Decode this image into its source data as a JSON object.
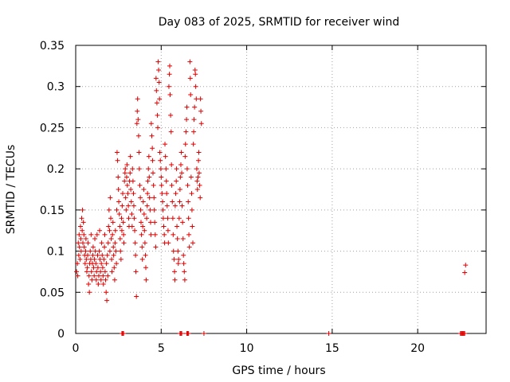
{
  "chart_data": {
    "type": "scatter",
    "title": "Day 083 of 2025, SRMTID for receiver wind",
    "xlabel": "GPS time / hours",
    "ylabel": "SRMTID / TECUs",
    "xlim": [
      0,
      24
    ],
    "ylim": [
      0,
      0.35
    ],
    "x_ticks": [
      0,
      5,
      10,
      15,
      20
    ],
    "y_ticks": [
      0,
      0.05,
      0.1,
      0.15,
      0.2,
      0.25,
      0.3,
      0.35
    ],
    "x_tick_labels": [
      "0",
      "5",
      "10",
      "15",
      "20"
    ],
    "y_tick_labels": [
      "0",
      "0.05",
      "0.1",
      "0.15",
      "0.2",
      "0.25",
      "0.3",
      "0.35"
    ],
    "grid": true,
    "legend": "none",
    "marker": "+",
    "color": "#dd0000",
    "points": [
      [
        0.05,
        0.075
      ],
      [
        0.1,
        0.085
      ],
      [
        0.12,
        0.07
      ],
      [
        0.15,
        0.11
      ],
      [
        0.18,
        0.095
      ],
      [
        0.2,
        0.12
      ],
      [
        0.22,
        0.105
      ],
      [
        0.25,
        0.09
      ],
      [
        0.28,
        0.13
      ],
      [
        0.3,
        0.115
      ],
      [
        0.32,
        0.1
      ],
      [
        0.35,
        0.14
      ],
      [
        0.38,
        0.125
      ],
      [
        0.4,
        0.15
      ],
      [
        0.42,
        0.11
      ],
      [
        0.45,
        0.135
      ],
      [
        0.48,
        0.12
      ],
      [
        0.5,
        0.105
      ],
      [
        0.52,
        0.095
      ],
      [
        0.55,
        0.085
      ],
      [
        0.58,
        0.1
      ],
      [
        0.6,
        0.115
      ],
      [
        0.62,
        0.09
      ],
      [
        0.65,
        0.075
      ],
      [
        0.68,
        0.08
      ],
      [
        0.7,
        0.095
      ],
      [
        0.72,
        0.11
      ],
      [
        0.75,
        0.06
      ],
      [
        0.78,
        0.07
      ],
      [
        0.8,
        0.05
      ],
      [
        0.82,
        0.085
      ],
      [
        0.85,
        0.1
      ],
      [
        0.88,
        0.09
      ],
      [
        0.9,
        0.12
      ],
      [
        0.92,
        0.075
      ],
      [
        0.95,
        0.065
      ],
      [
        0.98,
        0.085
      ],
      [
        1.0,
        0.095
      ],
      [
        1.02,
        0.105
      ],
      [
        1.05,
        0.08
      ],
      [
        1.08,
        0.07
      ],
      [
        1.1,
        0.09
      ],
      [
        1.12,
        0.115
      ],
      [
        1.15,
        0.1
      ],
      [
        1.18,
        0.085
      ],
      [
        1.2,
        0.065
      ],
      [
        1.22,
        0.075
      ],
      [
        1.25,
        0.12
      ],
      [
        1.28,
        0.095
      ],
      [
        1.3,
        0.08
      ],
      [
        1.32,
        0.06
      ],
      [
        1.35,
        0.07
      ],
      [
        1.38,
        0.1
      ],
      [
        1.4,
        0.125
      ],
      [
        1.42,
        0.09
      ],
      [
        1.45,
        0.075
      ],
      [
        1.48,
        0.065
      ],
      [
        1.5,
        0.085
      ],
      [
        1.52,
        0.11
      ],
      [
        1.55,
        0.095
      ],
      [
        1.58,
        0.08
      ],
      [
        1.6,
        0.07
      ],
      [
        1.62,
        0.06
      ],
      [
        1.65,
        0.09
      ],
      [
        1.68,
        0.105
      ],
      [
        1.7,
        0.12
      ],
      [
        1.72,
        0.075
      ],
      [
        1.75,
        0.065
      ],
      [
        1.78,
        0.05
      ],
      [
        1.8,
        0.085
      ],
      [
        1.82,
        0.04
      ],
      [
        1.85,
        0.095
      ],
      [
        1.88,
        0.07
      ],
      [
        1.9,
        0.11
      ],
      [
        1.92,
        0.13
      ],
      [
        1.95,
        0.15
      ],
      [
        1.98,
        0.125
      ],
      [
        2.0,
        0.1
      ],
      [
        2.02,
        0.165
      ],
      [
        2.05,
        0.14
      ],
      [
        2.08,
        0.115
      ],
      [
        2.1,
        0.09
      ],
      [
        2.12,
        0.075
      ],
      [
        2.15,
        0.12
      ],
      [
        2.18,
        0.135
      ],
      [
        2.2,
        0.105
      ],
      [
        2.22,
        0.095
      ],
      [
        2.25,
        0.08
      ],
      [
        2.28,
        0.065
      ],
      [
        2.3,
        0.11
      ],
      [
        2.32,
        0.125
      ],
      [
        2.35,
        0.1
      ],
      [
        2.38,
        0.085
      ],
      [
        2.4,
        0.15
      ],
      [
        2.42,
        0.22
      ],
      [
        2.45,
        0.21
      ],
      [
        2.48,
        0.19
      ],
      [
        2.5,
        0.175
      ],
      [
        2.52,
        0.16
      ],
      [
        2.55,
        0.145
      ],
      [
        2.58,
        0.13
      ],
      [
        2.6,
        0.115
      ],
      [
        2.62,
        0.1
      ],
      [
        2.65,
        0.09
      ],
      [
        2.68,
        0.14
      ],
      [
        2.7,
        0.125
      ],
      [
        2.72,
        0.155
      ],
      [
        2.75,
        0.17
      ],
      [
        2.78,
        0.135
      ],
      [
        2.8,
        0.12
      ],
      [
        2.82,
        0.11
      ],
      [
        2.85,
        0.185
      ],
      [
        2.88,
        0.195
      ],
      [
        2.9,
        0.2
      ],
      [
        2.92,
        0.165
      ],
      [
        2.95,
        0.15
      ],
      [
        2.98,
        0.19
      ],
      [
        3.0,
        0.205
      ],
      [
        3.02,
        0.18
      ],
      [
        3.05,
        0.17
      ],
      [
        3.08,
        0.155
      ],
      [
        3.1,
        0.14
      ],
      [
        3.12,
        0.13
      ],
      [
        3.15,
        0.185
      ],
      [
        3.18,
        0.195
      ],
      [
        3.2,
        0.215
      ],
      [
        3.22,
        0.175
      ],
      [
        3.25,
        0.16
      ],
      [
        3.28,
        0.145
      ],
      [
        3.3,
        0.13
      ],
      [
        3.32,
        0.2
      ],
      [
        3.35,
        0.185
      ],
      [
        3.38,
        0.17
      ],
      [
        3.4,
        0.155
      ],
      [
        3.42,
        0.14
      ],
      [
        3.45,
        0.125
      ],
      [
        3.48,
        0.11
      ],
      [
        3.5,
        0.095
      ],
      [
        3.52,
        0.075
      ],
      [
        3.55,
        0.045
      ],
      [
        3.58,
        0.255
      ],
      [
        3.6,
        0.27
      ],
      [
        3.62,
        0.285
      ],
      [
        3.65,
        0.26
      ],
      [
        3.68,
        0.24
      ],
      [
        3.7,
        0.22
      ],
      [
        3.72,
        0.2
      ],
      [
        3.75,
        0.18
      ],
      [
        3.78,
        0.165
      ],
      [
        3.8,
        0.15
      ],
      [
        3.82,
        0.135
      ],
      [
        3.85,
        0.12
      ],
      [
        3.88,
        0.105
      ],
      [
        3.9,
        0.09
      ],
      [
        3.92,
        0.13
      ],
      [
        3.95,
        0.16
      ],
      [
        3.98,
        0.175
      ],
      [
        4.0,
        0.145
      ],
      [
        4.02,
        0.125
      ],
      [
        4.05,
        0.11
      ],
      [
        4.08,
        0.095
      ],
      [
        4.1,
        0.08
      ],
      [
        4.12,
        0.065
      ],
      [
        4.15,
        0.14
      ],
      [
        4.18,
        0.155
      ],
      [
        4.2,
        0.17
      ],
      [
        4.22,
        0.185
      ],
      [
        4.25,
        0.2
      ],
      [
        4.28,
        0.215
      ],
      [
        4.3,
        0.19
      ],
      [
        4.32,
        0.165
      ],
      [
        4.35,
        0.15
      ],
      [
        4.38,
        0.135
      ],
      [
        4.4,
        0.12
      ],
      [
        4.42,
        0.255
      ],
      [
        4.45,
        0.24
      ],
      [
        4.48,
        0.225
      ],
      [
        4.5,
        0.21
      ],
      [
        4.52,
        0.195
      ],
      [
        4.55,
        0.18
      ],
      [
        4.58,
        0.165
      ],
      [
        4.6,
        0.15
      ],
      [
        4.62,
        0.135
      ],
      [
        4.65,
        0.12
      ],
      [
        4.68,
        0.105
      ],
      [
        4.7,
        0.31
      ],
      [
        4.72,
        0.295
      ],
      [
        4.75,
        0.28
      ],
      [
        4.78,
        0.265
      ],
      [
        4.8,
        0.25
      ],
      [
        4.82,
        0.33
      ],
      [
        4.85,
        0.32
      ],
      [
        4.88,
        0.305
      ],
      [
        4.9,
        0.285
      ],
      [
        4.92,
        0.22
      ],
      [
        4.95,
        0.21
      ],
      [
        4.98,
        0.2
      ],
      [
        5.0,
        0.19
      ],
      [
        5.02,
        0.18
      ],
      [
        5.05,
        0.17
      ],
      [
        5.08,
        0.16
      ],
      [
        5.1,
        0.15
      ],
      [
        5.12,
        0.14
      ],
      [
        5.15,
        0.13
      ],
      [
        5.18,
        0.12
      ],
      [
        5.2,
        0.11
      ],
      [
        5.22,
        0.23
      ],
      [
        5.25,
        0.215
      ],
      [
        5.28,
        0.2
      ],
      [
        5.3,
        0.185
      ],
      [
        5.32,
        0.17
      ],
      [
        5.35,
        0.155
      ],
      [
        5.38,
        0.14
      ],
      [
        5.4,
        0.125
      ],
      [
        5.42,
        0.11
      ],
      [
        5.45,
        0.3
      ],
      [
        5.48,
        0.315
      ],
      [
        5.5,
        0.325
      ],
      [
        5.52,
        0.29
      ],
      [
        5.55,
        0.265
      ],
      [
        5.58,
        0.245
      ],
      [
        5.6,
        0.205
      ],
      [
        5.62,
        0.18
      ],
      [
        5.65,
        0.16
      ],
      [
        5.68,
        0.14
      ],
      [
        5.7,
        0.12
      ],
      [
        5.72,
        0.1
      ],
      [
        5.75,
        0.09
      ],
      [
        5.78,
        0.075
      ],
      [
        5.8,
        0.065
      ],
      [
        5.82,
        0.155
      ],
      [
        5.85,
        0.17
      ],
      [
        5.88,
        0.185
      ],
      [
        5.9,
        0.2
      ],
      [
        5.92,
        0.13
      ],
      [
        5.95,
        0.115
      ],
      [
        5.98,
        0.1
      ],
      [
        6.0,
        0.085
      ],
      [
        6.02,
        0.09
      ],
      [
        6.05,
        0.14
      ],
      [
        6.08,
        0.16
      ],
      [
        6.1,
        0.175
      ],
      [
        6.12,
        0.19
      ],
      [
        6.15,
        0.205
      ],
      [
        6.18,
        0.22
      ],
      [
        6.2,
        0.195
      ],
      [
        6.22,
        0.155
      ],
      [
        6.25,
        0.135
      ],
      [
        6.28,
        0.115
      ],
      [
        6.3,
        0.095
      ],
      [
        6.32,
        0.085
      ],
      [
        6.35,
        0.075
      ],
      [
        6.38,
        0.065
      ],
      [
        6.4,
        0.215
      ],
      [
        6.42,
        0.23
      ],
      [
        6.45,
        0.245
      ],
      [
        6.48,
        0.26
      ],
      [
        6.5,
        0.275
      ],
      [
        6.52,
        0.2
      ],
      [
        6.55,
        0.18
      ],
      [
        6.58,
        0.16
      ],
      [
        6.6,
        0.14
      ],
      [
        6.62,
        0.12
      ],
      [
        6.65,
        0.105
      ],
      [
        6.68,
        0.33
      ],
      [
        6.7,
        0.31
      ],
      [
        6.72,
        0.29
      ],
      [
        6.75,
        0.19
      ],
      [
        6.78,
        0.17
      ],
      [
        6.8,
        0.15
      ],
      [
        6.82,
        0.13
      ],
      [
        6.85,
        0.11
      ],
      [
        6.88,
        0.23
      ],
      [
        6.9,
        0.245
      ],
      [
        6.92,
        0.26
      ],
      [
        6.95,
        0.275
      ],
      [
        6.98,
        0.32
      ],
      [
        7.0,
        0.315
      ],
      [
        7.02,
        0.3
      ],
      [
        7.05,
        0.285
      ],
      [
        7.08,
        0.2
      ],
      [
        7.1,
        0.185
      ],
      [
        7.12,
        0.175
      ],
      [
        7.15,
        0.19
      ],
      [
        7.18,
        0.21
      ],
      [
        7.2,
        0.22
      ],
      [
        7.22,
        0.195
      ],
      [
        7.25,
        0.18
      ],
      [
        7.28,
        0.165
      ],
      [
        7.3,
        0.285
      ],
      [
        7.32,
        0.27
      ],
      [
        7.35,
        0.255
      ],
      [
        22.8,
        0.083
      ],
      [
        22.75,
        0.074
      ]
    ],
    "zero_points": [
      2.7,
      2.75,
      2.8,
      6.1,
      6.15,
      6.2,
      6.5,
      6.55,
      6.6,
      7.5,
      14.8,
      22.5,
      22.55,
      22.6,
      22.65,
      22.7,
      22.75
    ]
  }
}
